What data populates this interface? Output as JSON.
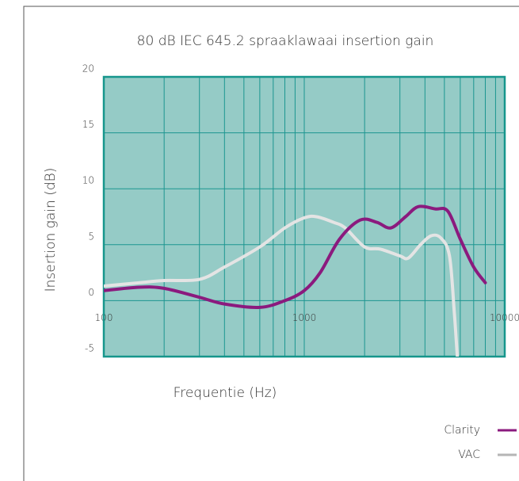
{
  "chart_data": {
    "type": "line",
    "title": "80 dB IEC 645.2 spraaklawaai insertion gain",
    "xlabel": "Frequentie (Hz)",
    "ylabel": "Insertion gain (dB)",
    "xscale": "log",
    "xlim": [
      100,
      10000
    ],
    "ylim": [
      -5,
      20
    ],
    "xticks": [
      100,
      1000,
      10000
    ],
    "xminor_ticks": [
      200,
      300,
      400,
      500,
      600,
      700,
      800,
      900,
      2000,
      3000,
      4000,
      5000,
      6000,
      7000,
      8000,
      9000
    ],
    "yticks": [
      -5,
      0,
      5,
      10,
      15,
      20
    ],
    "grid": true,
    "legend": "bottom-right",
    "series": [
      {
        "name": "Clarity",
        "color": "#8b1a7e",
        "x": [
          100,
          150,
          200,
          300,
          400,
          600,
          800,
          1000,
          1200,
          1500,
          1900,
          2300,
          2700,
          3200,
          3700,
          4500,
          5200,
          6000,
          7000,
          8000
        ],
        "values": [
          0.9,
          1.2,
          1.1,
          0.3,
          -0.3,
          -0.6,
          0,
          0.9,
          2.5,
          5.5,
          7.2,
          7,
          6.5,
          7.5,
          8.4,
          8.2,
          8,
          5.5,
          3,
          1.6
        ]
      },
      {
        "name": "VAC",
        "color": "#e4e4e4",
        "x": [
          100,
          150,
          200,
          300,
          400,
          600,
          800,
          1000,
          1150,
          1400,
          1600,
          2000,
          2400,
          3000,
          3300,
          3800,
          4300,
          4800,
          5300,
          5600,
          5800
        ],
        "values": [
          1.3,
          1.6,
          1.8,
          1.9,
          3,
          4.8,
          6.5,
          7.4,
          7.5,
          7,
          6.5,
          4.8,
          4.6,
          4,
          3.8,
          5,
          5.8,
          5.6,
          4,
          -1,
          -5
        ]
      }
    ]
  }
}
